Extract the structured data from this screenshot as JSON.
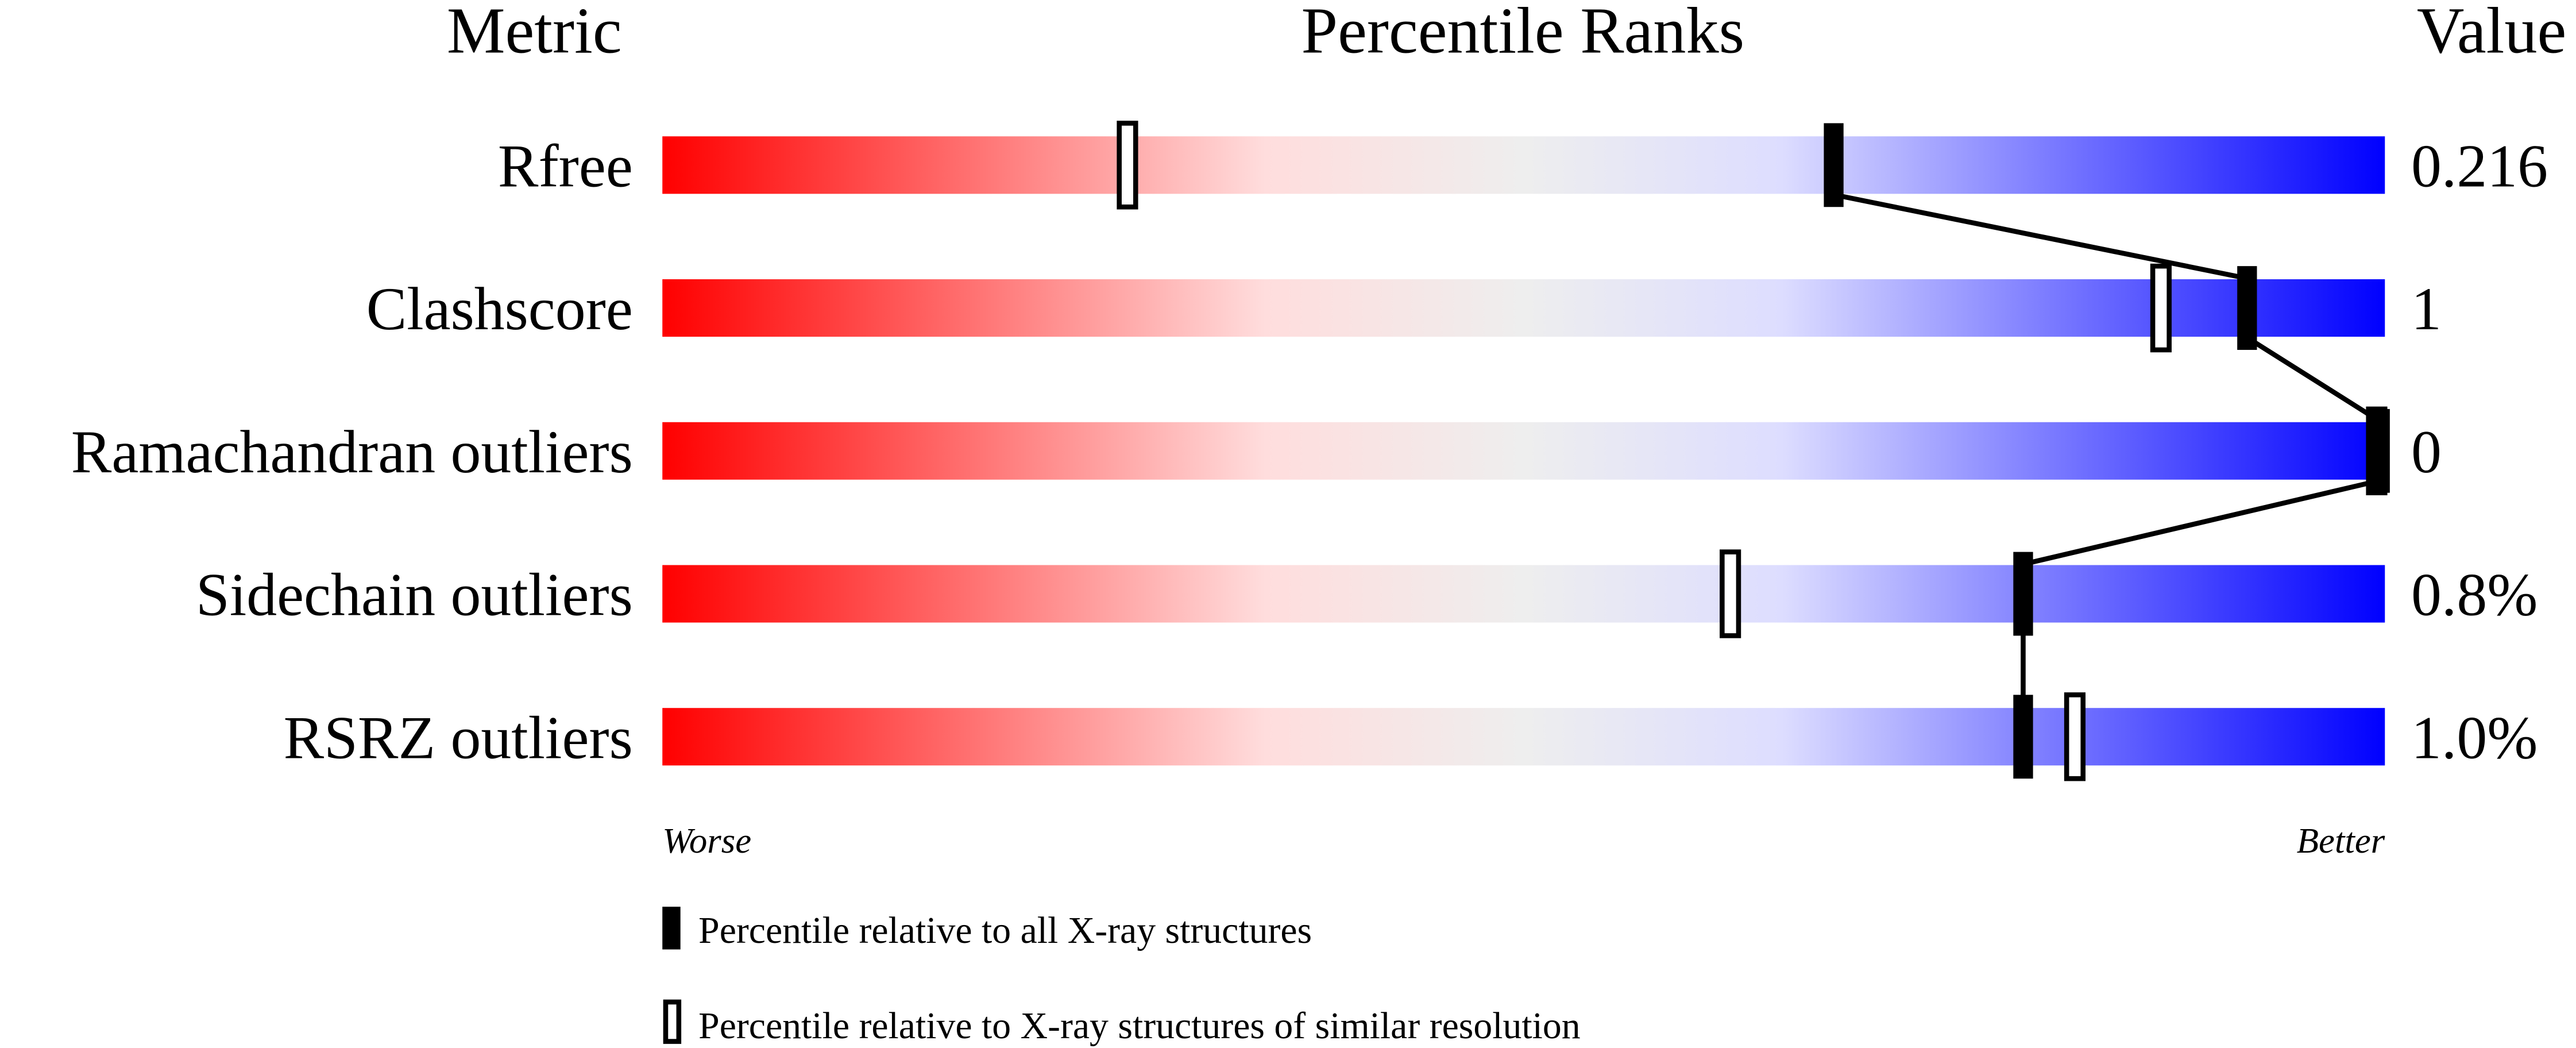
{
  "chart_data": {
    "type": "percentile-bar",
    "headers": {
      "metric": "Metric",
      "ranks": "Percentile Ranks",
      "value": "Value"
    },
    "xlim": [
      0,
      100
    ],
    "axis_labels": {
      "left": "Worse",
      "right": "Better"
    },
    "gradient_colors": [
      "#ff0000",
      "#ffdddd",
      "#eeeeee",
      "#ddddff",
      "#0000ff"
    ],
    "rows": [
      {
        "metric": "Rfree",
        "value": "0.216",
        "percentile_all": 68,
        "percentile_similar": 27
      },
      {
        "metric": "Clashscore",
        "value": "1",
        "percentile_all": 92,
        "percentile_similar": 87
      },
      {
        "metric": "Ramachandran outliers",
        "value": "0",
        "percentile_all": 100,
        "percentile_similar": 100
      },
      {
        "metric": "Sidechain outliers",
        "value": "0.8%",
        "percentile_all": 79,
        "percentile_similar": 62
      },
      {
        "metric": "RSRZ outliers",
        "value": "1.0%",
        "percentile_all": 79,
        "percentile_similar": 82
      }
    ],
    "legend": {
      "all": "Percentile relative to all X-ray structures",
      "similar": "Percentile relative to X-ray structures of similar resolution"
    }
  }
}
